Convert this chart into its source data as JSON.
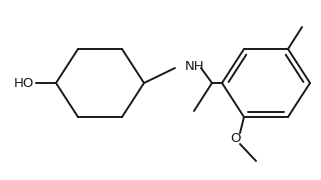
{
  "bg_color": "#ffffff",
  "line_color": "#1a1a1a",
  "lw": 1.4,
  "font_size": 9.5,
  "HO_label": "HO",
  "NH_label": "NH",
  "O_label": "O",
  "figsize": [
    3.21,
    1.8
  ],
  "dpi": 100
}
